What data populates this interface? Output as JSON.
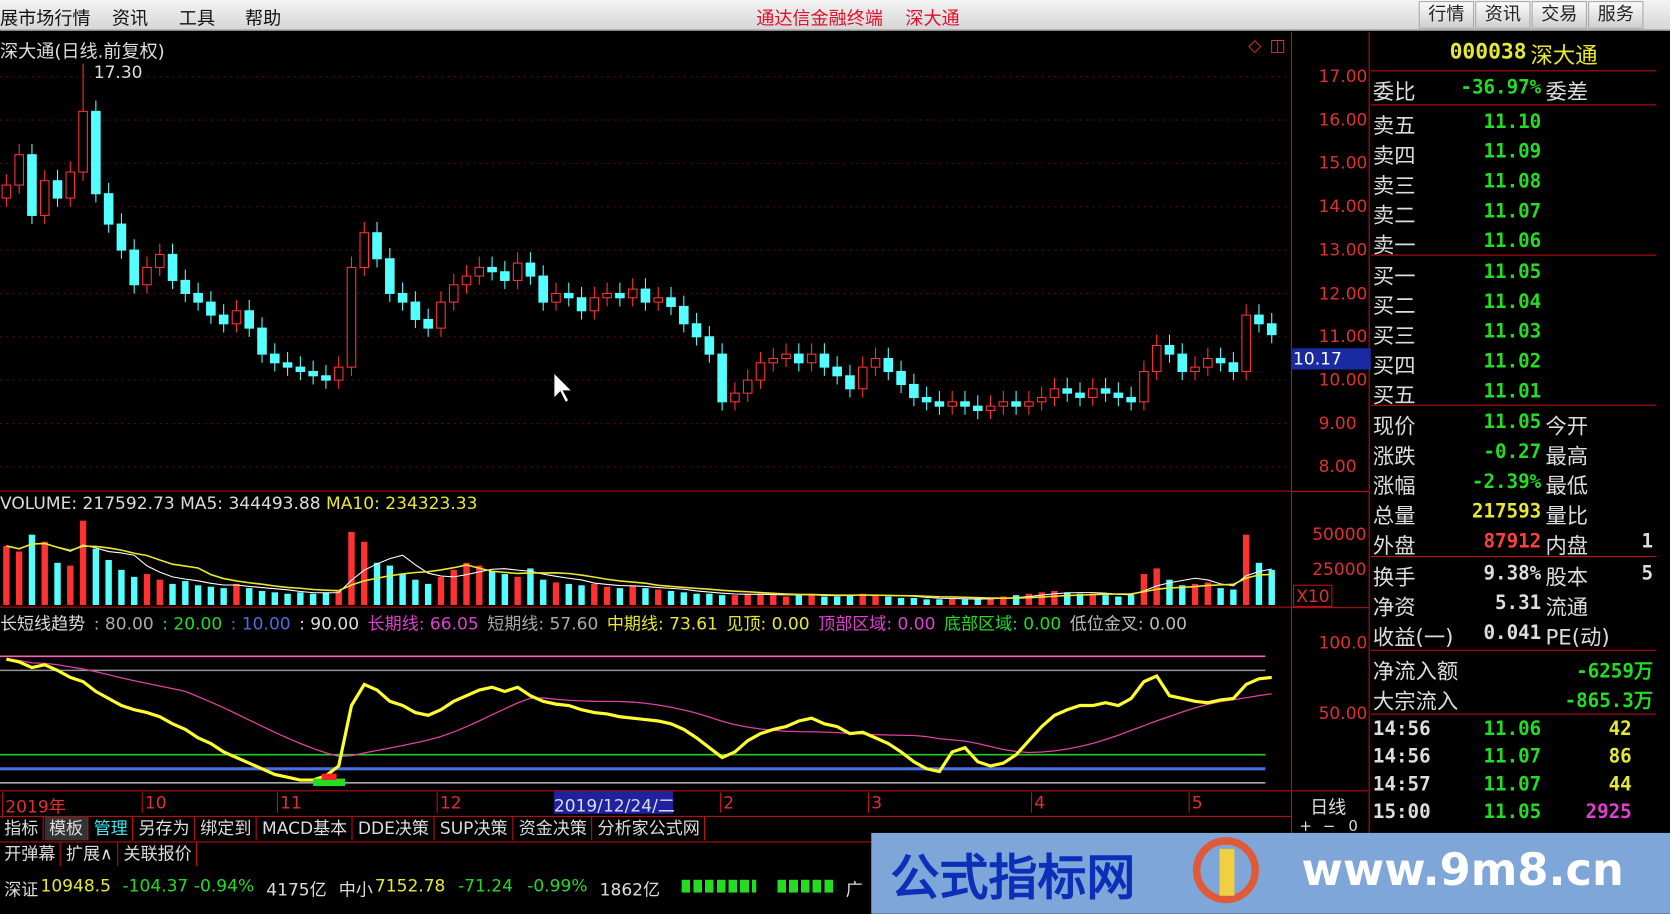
{
  "menu": {
    "items": [
      "展市场行情",
      "资讯",
      "工具",
      "帮助"
    ],
    "center_title": "通达信金融终端",
    "center_stock": "深大通",
    "right_buttons": [
      "行情",
      "资讯",
      "交易",
      "服务"
    ]
  },
  "chart": {
    "title": "深大通(日线.前复权)",
    "max_label": "17.30",
    "current_price_label": "10.17",
    "price_axis": [
      "17.00",
      "16.00",
      "15.00",
      "14.00",
      "13.00",
      "12.00",
      "11.00",
      "10.00",
      "9.00",
      "8.00"
    ],
    "volume_legend": {
      "volume": "VOLUME: 217592.73",
      "ma5": "MA5: 344493.88",
      "ma10": "MA10: 234323.33"
    },
    "volume_axis": [
      "50000",
      "25000"
    ],
    "volume_multiplier": "X10",
    "indicator_axis": [
      "100.0",
      "50.00"
    ],
    "indicator_legend": [
      {
        "text": "长短线趋势",
        "color": "#dddddd"
      },
      {
        "text": ": 80.00",
        "color": "#aaaaaa"
      },
      {
        "text": ": 20.00",
        "color": "#22dd22"
      },
      {
        "text": ": 10.00",
        "color": "#4a6ee0"
      },
      {
        "text": ": 90.00",
        "color": "#dddddd"
      },
      {
        "text": "长期线: 66.05",
        "color": "#e040d0"
      },
      {
        "text": "短期线: 57.60",
        "color": "#aaaaaa"
      },
      {
        "text": "中期线: 73.61",
        "color": "#e8e830"
      },
      {
        "text": "见顶: 0.00",
        "color": "#e8e830"
      },
      {
        "text": "顶部区域: 0.00",
        "color": "#e040d0"
      },
      {
        "text": "底部区域: 0.00",
        "color": "#22dd22"
      },
      {
        "text": "低位金叉: 0.00",
        "color": "#bbbbbb"
      }
    ],
    "date_axis": [
      "2019年",
      "10",
      "11",
      "12",
      "2",
      "3",
      "4",
      "5"
    ],
    "cursor_date": "2019/12/24/二",
    "period": "日线",
    "zoom_buttons": [
      "+",
      "−",
      "0"
    ]
  },
  "chart_data": {
    "type": "candlestick",
    "ylim": [
      8,
      17
    ],
    "close": [
      14.5,
      15.2,
      13.8,
      14.6,
      14.2,
      14.8,
      16.2,
      14.3,
      13.6,
      13.0,
      12.2,
      12.6,
      12.9,
      12.3,
      12.0,
      11.8,
      11.5,
      11.3,
      11.6,
      11.2,
      10.6,
      10.4,
      10.3,
      10.2,
      10.1,
      10.0,
      10.3,
      12.6,
      13.4,
      12.8,
      12.0,
      11.8,
      11.4,
      11.2,
      11.8,
      12.2,
      12.4,
      12.6,
      12.5,
      12.3,
      12.7,
      12.4,
      11.8,
      12.0,
      11.9,
      11.6,
      11.9,
      12.0,
      11.9,
      12.1,
      11.8,
      11.9,
      11.7,
      11.3,
      11.0,
      10.6,
      9.5,
      9.7,
      10.0,
      10.4,
      10.5,
      10.6,
      10.4,
      10.6,
      10.3,
      10.1,
      9.8,
      10.3,
      10.5,
      10.2,
      9.9,
      9.6,
      9.5,
      9.4,
      9.5,
      9.4,
      9.3,
      9.4,
      9.5,
      9.4,
      9.5,
      9.6,
      9.8,
      9.7,
      9.6,
      9.8,
      9.7,
      9.6,
      9.5,
      10.2,
      10.8,
      10.6,
      10.2,
      10.3,
      10.5,
      10.4,
      10.2,
      11.5,
      11.3,
      11.05
    ],
    "volume": [
      42000,
      38000,
      50000,
      45000,
      30000,
      28000,
      60000,
      40000,
      32000,
      25000,
      20000,
      22000,
      18000,
      15000,
      17000,
      14000,
      13000,
      12000,
      15000,
      12000,
      10000,
      9000,
      8000,
      9000,
      8000,
      9000,
      10000,
      52000,
      45000,
      30000,
      28000,
      22000,
      18000,
      15000,
      20000,
      25000,
      30000,
      28000,
      24000,
      22000,
      20000,
      26000,
      18000,
      16000,
      15000,
      14000,
      15000,
      13000,
      12000,
      14000,
      12000,
      11000,
      10000,
      9000,
      8000,
      8000,
      7000,
      7000,
      8000,
      8000,
      7000,
      6000,
      7000,
      8000,
      6000,
      6000,
      7000,
      8000,
      7000,
      6000,
      5000,
      5000,
      4000,
      4000,
      5000,
      4000,
      4000,
      5000,
      6000,
      7000,
      8000,
      9000,
      10000,
      9000,
      8000,
      8000,
      7000,
      6000,
      7000,
      22000,
      26000,
      18000,
      14000,
      15000,
      16000,
      12000,
      11000,
      50000,
      30000,
      25000
    ],
    "mid_line": [
      88,
      86,
      82,
      84,
      80,
      75,
      72,
      65,
      60,
      55,
      52,
      50,
      47,
      42,
      38,
      32,
      28,
      22,
      18,
      14,
      10,
      6,
      4,
      2,
      2,
      5,
      12,
      55,
      70,
      66,
      58,
      55,
      50,
      48,
      52,
      58,
      62,
      66,
      68,
      65,
      68,
      62,
      58,
      56,
      55,
      52,
      50,
      49,
      47,
      46,
      45,
      44,
      42,
      38,
      32,
      25,
      18,
      22,
      30,
      35,
      38,
      40,
      44,
      46,
      42,
      40,
      35,
      36,
      32,
      28,
      22,
      15,
      10,
      8,
      22,
      25,
      15,
      12,
      14,
      20,
      30,
      40,
      48,
      52,
      55,
      55,
      57,
      55,
      60,
      72,
      76,
      62,
      60,
      58,
      57,
      59,
      60,
      70,
      74,
      75
    ],
    "levels": [
      90,
      80,
      20,
      10,
      0
    ],
    "colors": {
      "up": "#ff3232",
      "down": "#54ffff",
      "mid": "#ffff30",
      "long": "#e040a0",
      "ma5": "#ffffff",
      "ma10": "#e8e830"
    }
  },
  "quote": {
    "code": "000038",
    "name": "深大通",
    "wb": {
      "label": "委比",
      "value": "-36.97%",
      "label2": "委差"
    },
    "sell": [
      {
        "label": "卖五",
        "price": "11.10"
      },
      {
        "label": "卖四",
        "price": "11.09"
      },
      {
        "label": "卖三",
        "price": "11.08"
      },
      {
        "label": "卖二",
        "price": "11.07"
      },
      {
        "label": "卖一",
        "price": "11.06"
      }
    ],
    "buy": [
      {
        "label": "买一",
        "price": "11.05"
      },
      {
        "label": "买二",
        "price": "11.04"
      },
      {
        "label": "买三",
        "price": "11.03"
      },
      {
        "label": "买四",
        "price": "11.02"
      },
      {
        "label": "买五",
        "price": "11.01"
      }
    ],
    "stats": [
      {
        "label": "现价",
        "value": "11.05",
        "color": "#22dd22",
        "label2": "今开",
        "v2": ""
      },
      {
        "label": "涨跌",
        "value": "-0.27",
        "color": "#22dd22",
        "label2": "最高",
        "v2": ""
      },
      {
        "label": "涨幅",
        "value": "-2.39%",
        "color": "#22dd22",
        "label2": "最低",
        "v2": ""
      },
      {
        "label": "总量",
        "value": "217593",
        "color": "#e8e830",
        "label2": "量比",
        "v2": ""
      },
      {
        "label": "外盘",
        "value": "87912",
        "color": "#ff4040",
        "label2": "内盘",
        "v2": "1"
      }
    ],
    "fund": [
      {
        "label": "换手",
        "value": "9.38%",
        "label2": "股本",
        "v2": "5"
      },
      {
        "label": "净资",
        "value": "5.31",
        "label2": "流通",
        "v2": ""
      },
      {
        "label": "收益(一)",
        "value": "0.041",
        "label2": "PE(动)",
        "v2": ""
      }
    ],
    "flow": [
      {
        "label": "净流入额",
        "value": "-6259万"
      },
      {
        "label": "大宗流入",
        "value": "-865.3万"
      }
    ],
    "ticks": [
      {
        "time": "14:56",
        "price": "11.06",
        "vol": "42",
        "vcolor": "#e8e830"
      },
      {
        "time": "14:56",
        "price": "11.07",
        "vol": "86",
        "vcolor": "#e8e830"
      },
      {
        "time": "14:57",
        "price": "11.07",
        "vol": "44",
        "vcolor": "#e8e830"
      },
      {
        "time": "15:00",
        "price": "11.05",
        "vol": "2925",
        "vcolor": "#e040d0"
      }
    ]
  },
  "tabs": [
    "指标",
    "模板",
    "管理",
    "另存为",
    "绑定到",
    "MACD基本",
    "DDE决策",
    "SUP决策",
    "资金决策",
    "分析家公式网"
  ],
  "tabs2": [
    "开弹幕",
    "扩展∧",
    "关联报价"
  ],
  "status": {
    "sz_label": "深证",
    "sz_value": "10948.5",
    "sz_change": "-104.37",
    "sz_pct": "-0.94%",
    "sz_amount": "4175亿",
    "zx_label": "中小",
    "zx_value": "7152.78",
    "zx_change": "-71.24",
    "zx_pct": "-0.99%",
    "zx_amount": "1862亿",
    "tail": "广"
  },
  "watermark": {
    "name": "公式指标网",
    "url": "www.9m8.cn"
  }
}
